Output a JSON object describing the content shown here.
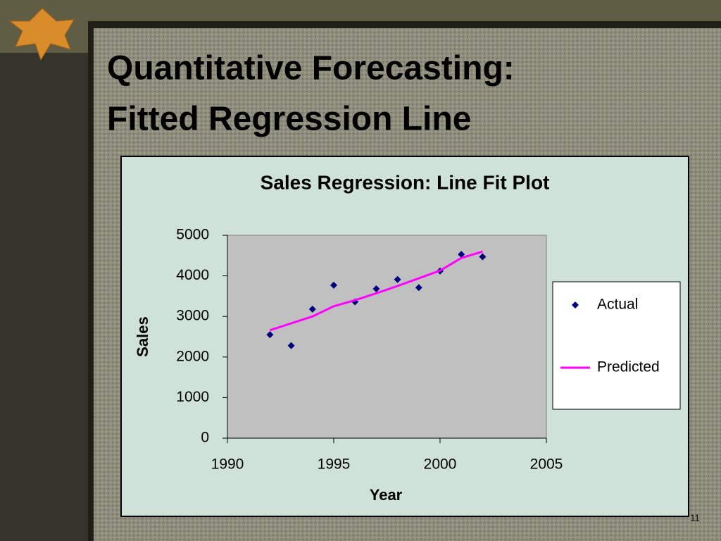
{
  "slide": {
    "title_lines": [
      "Quantitative Forecasting:",
      "Fitted Regression Line"
    ],
    "page_number": "11"
  },
  "chart_data": {
    "type": "scatter",
    "title": "Sales Regression: Line Fit  Plot",
    "x_label": "Year",
    "y_label": "Sales",
    "x": [
      1992,
      1993,
      1994,
      1995,
      1996,
      1997,
      1998,
      1999,
      2000,
      2001,
      2002
    ],
    "series": [
      {
        "name": "Actual",
        "type": "scatter",
        "color": "#000080",
        "values": [
          2550,
          2280,
          3180,
          3770,
          3360,
          3680,
          3910,
          3710,
          4120,
          4530,
          4470
        ]
      },
      {
        "name": "Predicted",
        "type": "line",
        "color": "#ff00ff",
        "values": [
          2660,
          2830,
          3000,
          3250,
          3400,
          3570,
          3750,
          3940,
          4130,
          4440,
          4600
        ]
      }
    ],
    "xlim": [
      1990,
      2005
    ],
    "xticks": [
      1990,
      1995,
      2000,
      2005
    ],
    "ylim": [
      0,
      5000
    ],
    "yticks": [
      0,
      1000,
      2000,
      3000,
      4000,
      5000
    ],
    "grid": false,
    "legend": "right"
  }
}
